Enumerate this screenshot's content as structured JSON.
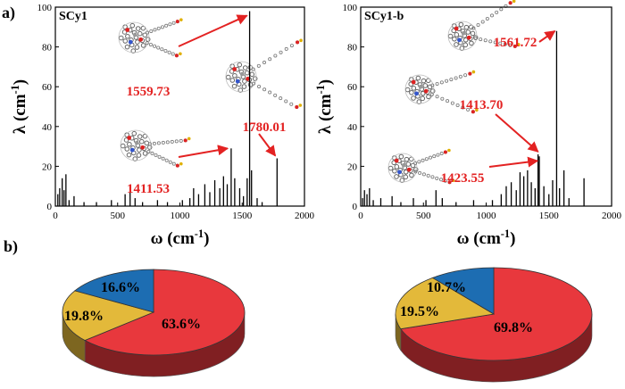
{
  "panel_labels": {
    "a": "a)",
    "b": "b)"
  },
  "chart_data": [
    {
      "type": "bar",
      "subtype": "stick-spectrum",
      "title": "SCy1",
      "xlabel": "ω (cm-1)",
      "ylabel": "λ (cm-1)",
      "xlim": [
        0,
        2000
      ],
      "ylim": [
        0,
        100
      ],
      "xticks": [
        0,
        500,
        1000,
        1500,
        2000
      ],
      "yticks": [
        0,
        20,
        40,
        60,
        80,
        100
      ],
      "sticks": [
        {
          "x": 20,
          "y": 6
        },
        {
          "x": 35,
          "y": 9
        },
        {
          "x": 55,
          "y": 14
        },
        {
          "x": 70,
          "y": 8
        },
        {
          "x": 85,
          "y": 16
        },
        {
          "x": 110,
          "y": 3
        },
        {
          "x": 150,
          "y": 5
        },
        {
          "x": 230,
          "y": 2
        },
        {
          "x": 330,
          "y": 2
        },
        {
          "x": 450,
          "y": 3
        },
        {
          "x": 560,
          "y": 6
        },
        {
          "x": 600,
          "y": 7
        },
        {
          "x": 640,
          "y": 4
        },
        {
          "x": 700,
          "y": 2
        },
        {
          "x": 820,
          "y": 3
        },
        {
          "x": 900,
          "y": 2
        },
        {
          "x": 1020,
          "y": 3
        },
        {
          "x": 1080,
          "y": 4
        },
        {
          "x": 1110,
          "y": 9
        },
        {
          "x": 1150,
          "y": 6
        },
        {
          "x": 1200,
          "y": 11
        },
        {
          "x": 1240,
          "y": 7
        },
        {
          "x": 1280,
          "y": 13
        },
        {
          "x": 1320,
          "y": 9
        },
        {
          "x": 1350,
          "y": 15
        },
        {
          "x": 1380,
          "y": 11
        },
        {
          "x": 1411.53,
          "y": 29
        },
        {
          "x": 1440,
          "y": 14
        },
        {
          "x": 1480,
          "y": 9
        },
        {
          "x": 1510,
          "y": 5
        },
        {
          "x": 1540,
          "y": 14
        },
        {
          "x": 1559.73,
          "y": 98
        },
        {
          "x": 1575,
          "y": 18
        },
        {
          "x": 1620,
          "y": 4
        },
        {
          "x": 1660,
          "y": 2
        },
        {
          "x": 1780.01,
          "y": 24
        }
      ],
      "annotations": [
        {
          "text": "1559.73",
          "x": 1559.73,
          "y": 98
        },
        {
          "text": "1780.01",
          "x": 1780.01,
          "y": 24
        },
        {
          "text": "1411.53",
          "x": 1411.53,
          "y": 29
        }
      ]
    },
    {
      "type": "bar",
      "subtype": "stick-spectrum",
      "title": "SCy1-b",
      "xlabel": "ω (cm-1)",
      "ylabel": "λ (cm-1)",
      "xlim": [
        0,
        2000
      ],
      "ylim": [
        0,
        100
      ],
      "xticks": [
        0,
        500,
        1000,
        1500,
        2000
      ],
      "yticks": [
        0,
        20,
        40,
        60,
        80,
        100
      ],
      "sticks": [
        {
          "x": 15,
          "y": 4
        },
        {
          "x": 30,
          "y": 8
        },
        {
          "x": 50,
          "y": 6
        },
        {
          "x": 70,
          "y": 9
        },
        {
          "x": 100,
          "y": 3
        },
        {
          "x": 160,
          "y": 4
        },
        {
          "x": 250,
          "y": 5
        },
        {
          "x": 320,
          "y": 2
        },
        {
          "x": 420,
          "y": 4
        },
        {
          "x": 520,
          "y": 3
        },
        {
          "x": 600,
          "y": 8
        },
        {
          "x": 650,
          "y": 4
        },
        {
          "x": 760,
          "y": 2
        },
        {
          "x": 900,
          "y": 3
        },
        {
          "x": 1050,
          "y": 3
        },
        {
          "x": 1120,
          "y": 6
        },
        {
          "x": 1160,
          "y": 10
        },
        {
          "x": 1200,
          "y": 12
        },
        {
          "x": 1240,
          "y": 8
        },
        {
          "x": 1270,
          "y": 17
        },
        {
          "x": 1300,
          "y": 15
        },
        {
          "x": 1330,
          "y": 18
        },
        {
          "x": 1360,
          "y": 12
        },
        {
          "x": 1390,
          "y": 9
        },
        {
          "x": 1413.7,
          "y": 26
        },
        {
          "x": 1423.55,
          "y": 25
        },
        {
          "x": 1460,
          "y": 10
        },
        {
          "x": 1500,
          "y": 6
        },
        {
          "x": 1530,
          "y": 13
        },
        {
          "x": 1561.72,
          "y": 88
        },
        {
          "x": 1585,
          "y": 9
        },
        {
          "x": 1620,
          "y": 18
        },
        {
          "x": 1660,
          "y": 4
        },
        {
          "x": 1780,
          "y": 14
        }
      ],
      "annotations": [
        {
          "text": "1561.72",
          "x": 1561.72,
          "y": 88
        },
        {
          "text": "1413.70",
          "x": 1413.7,
          "y": 26
        },
        {
          "text": "1423.55",
          "x": 1423.55,
          "y": 25
        }
      ]
    },
    {
      "type": "pie",
      "style": "3d",
      "slices": [
        {
          "label": "63.6%",
          "value": 63.6,
          "color": "#e8383d"
        },
        {
          "label": "19.8%",
          "value": 19.8,
          "color": "#e3b93a"
        },
        {
          "label": "16.6%",
          "value": 16.6,
          "color": "#1d6db2"
        }
      ]
    },
    {
      "type": "pie",
      "style": "3d",
      "slices": [
        {
          "label": "69.8%",
          "value": 69.8,
          "color": "#e8383d"
        },
        {
          "label": "19.5%",
          "value": 19.5,
          "color": "#e3b93a"
        },
        {
          "label": "10.7%",
          "value": 10.7,
          "color": "#1d6db2"
        }
      ]
    }
  ]
}
